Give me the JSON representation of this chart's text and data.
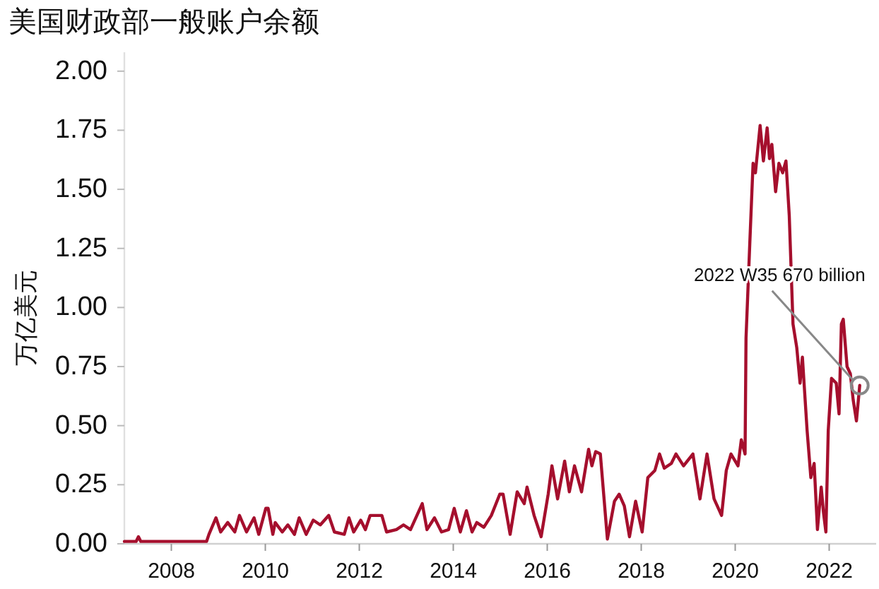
{
  "chart_data": {
    "type": "line",
    "title": "美国财政部一般账户余额",
    "ylabel": "万亿美元",
    "xlim": [
      2007,
      2023
    ],
    "xticks": [
      2008,
      2010,
      2012,
      2014,
      2016,
      2018,
      2020,
      2022
    ],
    "ylim": [
      0,
      2.08
    ],
    "yticks": [
      {
        "value": 0,
        "label": "0.00"
      },
      {
        "value": 0.25,
        "label": "0.25"
      },
      {
        "value": 0.5,
        "label": "0.50"
      },
      {
        "value": 0.75,
        "label": "0.75"
      },
      {
        "value": 1,
        "label": "1.00"
      },
      {
        "value": 1.25,
        "label": "1.25"
      },
      {
        "value": 1.5,
        "label": "1.50"
      },
      {
        "value": 1.75,
        "label": "1.75"
      },
      {
        "value": 2,
        "label": "2.00"
      }
    ],
    "grid": false,
    "marker": "none",
    "line_style": "solid",
    "annotations": [
      {
        "text": "2022 W35 670 billion",
        "x": 2022.65,
        "y": 0.67
      }
    ],
    "series": [
      {
        "color": "#a50f2d",
        "x": [
          2007.0,
          2007.25,
          2007.3,
          2007.35,
          2008.7,
          2008.75,
          2008.8,
          2008.95,
          2009.05,
          2009.2,
          2009.35,
          2009.45,
          2009.6,
          2009.76,
          2009.86,
          2010.01,
          2010.06,
          2010.16,
          2010.21,
          2010.36,
          2010.48,
          2010.62,
          2010.72,
          2010.87,
          2011.02,
          2011.17,
          2011.35,
          2011.47,
          2011.68,
          2011.78,
          2011.88,
          2012.03,
          2012.13,
          2012.23,
          2012.48,
          2012.58,
          2012.79,
          2012.94,
          2013.09,
          2013.34,
          2013.44,
          2013.6,
          2013.75,
          2013.9,
          2014.02,
          2014.15,
          2014.28,
          2014.4,
          2014.5,
          2014.65,
          2014.81,
          2014.99,
          2015.06,
          2015.21,
          2015.36,
          2015.51,
          2015.57,
          2015.72,
          2015.87,
          2016.02,
          2016.1,
          2016.22,
          2016.37,
          2016.47,
          2016.58,
          2016.73,
          2016.88,
          2016.95,
          2017.03,
          2017.13,
          2017.28,
          2017.43,
          2017.53,
          2017.64,
          2017.75,
          2017.88,
          2018.02,
          2018.14,
          2018.29,
          2018.39,
          2018.49,
          2018.64,
          2018.74,
          2018.9,
          2019.1,
          2019.25,
          2019.4,
          2019.55,
          2019.71,
          2019.81,
          2019.91,
          2020.06,
          2020.13,
          2020.21,
          2020.23,
          2020.31,
          2020.38,
          2020.43,
          2020.53,
          2020.6,
          2020.68,
          2020.73,
          2020.78,
          2020.86,
          2020.93,
          2021.01,
          2021.08,
          2021.15,
          2021.23,
          2021.31,
          2021.38,
          2021.43,
          2021.53,
          2021.61,
          2021.68,
          2021.75,
          2021.83,
          2021.88,
          2021.93,
          2021.98,
          2022.05,
          2022.15,
          2022.21,
          2022.26,
          2022.3,
          2022.38,
          2022.45,
          2022.51,
          2022.58,
          2022.65
        ],
        "values": [
          0.01,
          0.01,
          0.03,
          0.01,
          0.01,
          0.01,
          0.04,
          0.11,
          0.05,
          0.09,
          0.05,
          0.12,
          0.05,
          0.11,
          0.04,
          0.15,
          0.15,
          0.04,
          0.09,
          0.05,
          0.08,
          0.04,
          0.11,
          0.04,
          0.1,
          0.08,
          0.12,
          0.05,
          0.04,
          0.11,
          0.05,
          0.1,
          0.06,
          0.12,
          0.12,
          0.05,
          0.06,
          0.08,
          0.06,
          0.17,
          0.06,
          0.11,
          0.05,
          0.06,
          0.15,
          0.05,
          0.14,
          0.05,
          0.09,
          0.07,
          0.12,
          0.21,
          0.21,
          0.04,
          0.22,
          0.17,
          0.24,
          0.12,
          0.03,
          0.21,
          0.33,
          0.19,
          0.35,
          0.22,
          0.33,
          0.22,
          0.4,
          0.33,
          0.39,
          0.38,
          0.02,
          0.18,
          0.21,
          0.16,
          0.03,
          0.18,
          0.05,
          0.28,
          0.31,
          0.38,
          0.32,
          0.34,
          0.38,
          0.33,
          0.38,
          0.19,
          0.38,
          0.19,
          0.12,
          0.31,
          0.38,
          0.33,
          0.44,
          0.38,
          0.87,
          1.27,
          1.61,
          1.57,
          1.77,
          1.62,
          1.76,
          1.63,
          1.69,
          1.49,
          1.61,
          1.57,
          1.62,
          1.39,
          0.93,
          0.83,
          0.68,
          0.79,
          0.48,
          0.28,
          0.34,
          0.06,
          0.24,
          0.13,
          0.05,
          0.48,
          0.7,
          0.68,
          0.55,
          0.93,
          0.95,
          0.75,
          0.72,
          0.61,
          0.52,
          0.67
        ]
      }
    ]
  }
}
